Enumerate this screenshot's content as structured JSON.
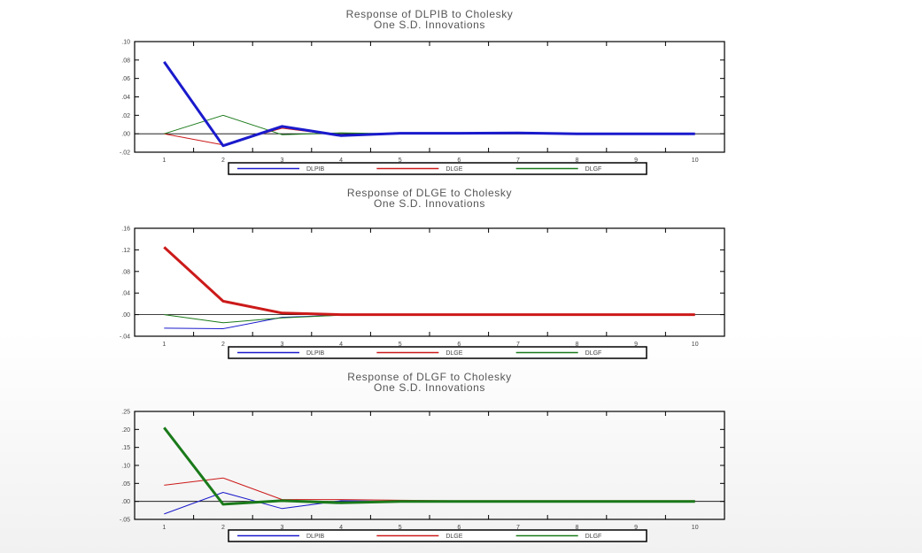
{
  "chart_data": [
    {
      "type": "line",
      "title": "Response of DLPIB to Cholesky",
      "subtitle": "One S.D. Innovations",
      "x": [
        "1",
        "2",
        "3",
        "4",
        "5",
        "6",
        "7",
        "8",
        "9",
        "10"
      ],
      "yticks": [
        "-.02",
        ".00",
        ".02",
        ".04",
        ".06",
        ".08",
        ".10"
      ],
      "ylim": [
        -0.02,
        0.1
      ],
      "grid": false,
      "legend": "bottom",
      "series": [
        {
          "name": "DLPIB",
          "color": "#1a1acc",
          "width": 3,
          "values": [
            0.078,
            -0.013,
            0.008,
            -0.002,
            0.0005,
            0.0005,
            0.0008,
            0.0,
            0.0,
            0.0
          ]
        },
        {
          "name": "DLGE",
          "color": "#cc1a1a",
          "width": 1,
          "values": [
            0.0,
            -0.012,
            0.006,
            -0.002,
            0.0,
            0.0,
            0.0,
            0.0,
            0.0,
            0.0
          ]
        },
        {
          "name": "DLGF",
          "color": "#1a7a1a",
          "width": 1,
          "values": [
            0.0,
            0.02,
            -0.001,
            0.001,
            0.0,
            0.0,
            0.0,
            0.0,
            0.0,
            0.0
          ]
        }
      ]
    },
    {
      "type": "line",
      "title": "Response of DLGE to Cholesky",
      "subtitle": "One S.D. Innovations",
      "x": [
        "1",
        "2",
        "3",
        "4",
        "5",
        "6",
        "7",
        "8",
        "9",
        "10"
      ],
      "yticks": [
        "-.04",
        ".00",
        ".04",
        ".08",
        ".12",
        ".16"
      ],
      "ylim": [
        -0.04,
        0.16
      ],
      "grid": false,
      "legend": "bottom",
      "series": [
        {
          "name": "DLPIB",
          "color": "#1a1acc",
          "width": 1,
          "values": [
            -0.025,
            -0.026,
            -0.005,
            -0.001,
            0.0,
            0.0,
            0.0,
            0.0,
            0.0,
            0.0
          ]
        },
        {
          "name": "DLGE",
          "color": "#cc1a1a",
          "width": 3,
          "values": [
            0.125,
            0.025,
            0.003,
            0.0,
            0.0,
            0.0,
            0.0,
            0.0,
            0.0,
            0.0
          ]
        },
        {
          "name": "DLGF",
          "color": "#1a7a1a",
          "width": 1,
          "values": [
            0.0,
            -0.015,
            -0.006,
            -0.001,
            0.0,
            0.0,
            0.0,
            0.0,
            0.0,
            0.0
          ]
        }
      ]
    },
    {
      "type": "line",
      "title": "Response of DLGF to Cholesky",
      "subtitle": "One S.D. Innovations",
      "x": [
        "1",
        "2",
        "3",
        "4",
        "5",
        "6",
        "7",
        "8",
        "9",
        "10"
      ],
      "yticks": [
        "-.05",
        ".00",
        ".05",
        ".10",
        ".15",
        ".20",
        ".25"
      ],
      "ylim": [
        -0.05,
        0.25
      ],
      "grid": false,
      "legend": "bottom",
      "series": [
        {
          "name": "DLPIB",
          "color": "#1a1acc",
          "width": 1,
          "values": [
            -0.035,
            0.025,
            -0.02,
            0.002,
            0.0,
            0.0,
            0.0,
            0.0,
            0.0,
            0.0
          ]
        },
        {
          "name": "DLGE",
          "color": "#cc1a1a",
          "width": 1,
          "values": [
            0.045,
            0.065,
            0.005,
            0.005,
            0.003,
            0.002,
            0.002,
            0.002,
            0.002,
            0.002
          ]
        },
        {
          "name": "DLGF",
          "color": "#1a7a1a",
          "width": 3,
          "values": [
            0.205,
            -0.008,
            0.002,
            -0.004,
            0.0,
            0.0,
            0.0,
            0.0,
            0.0,
            0.0
          ]
        }
      ]
    }
  ]
}
